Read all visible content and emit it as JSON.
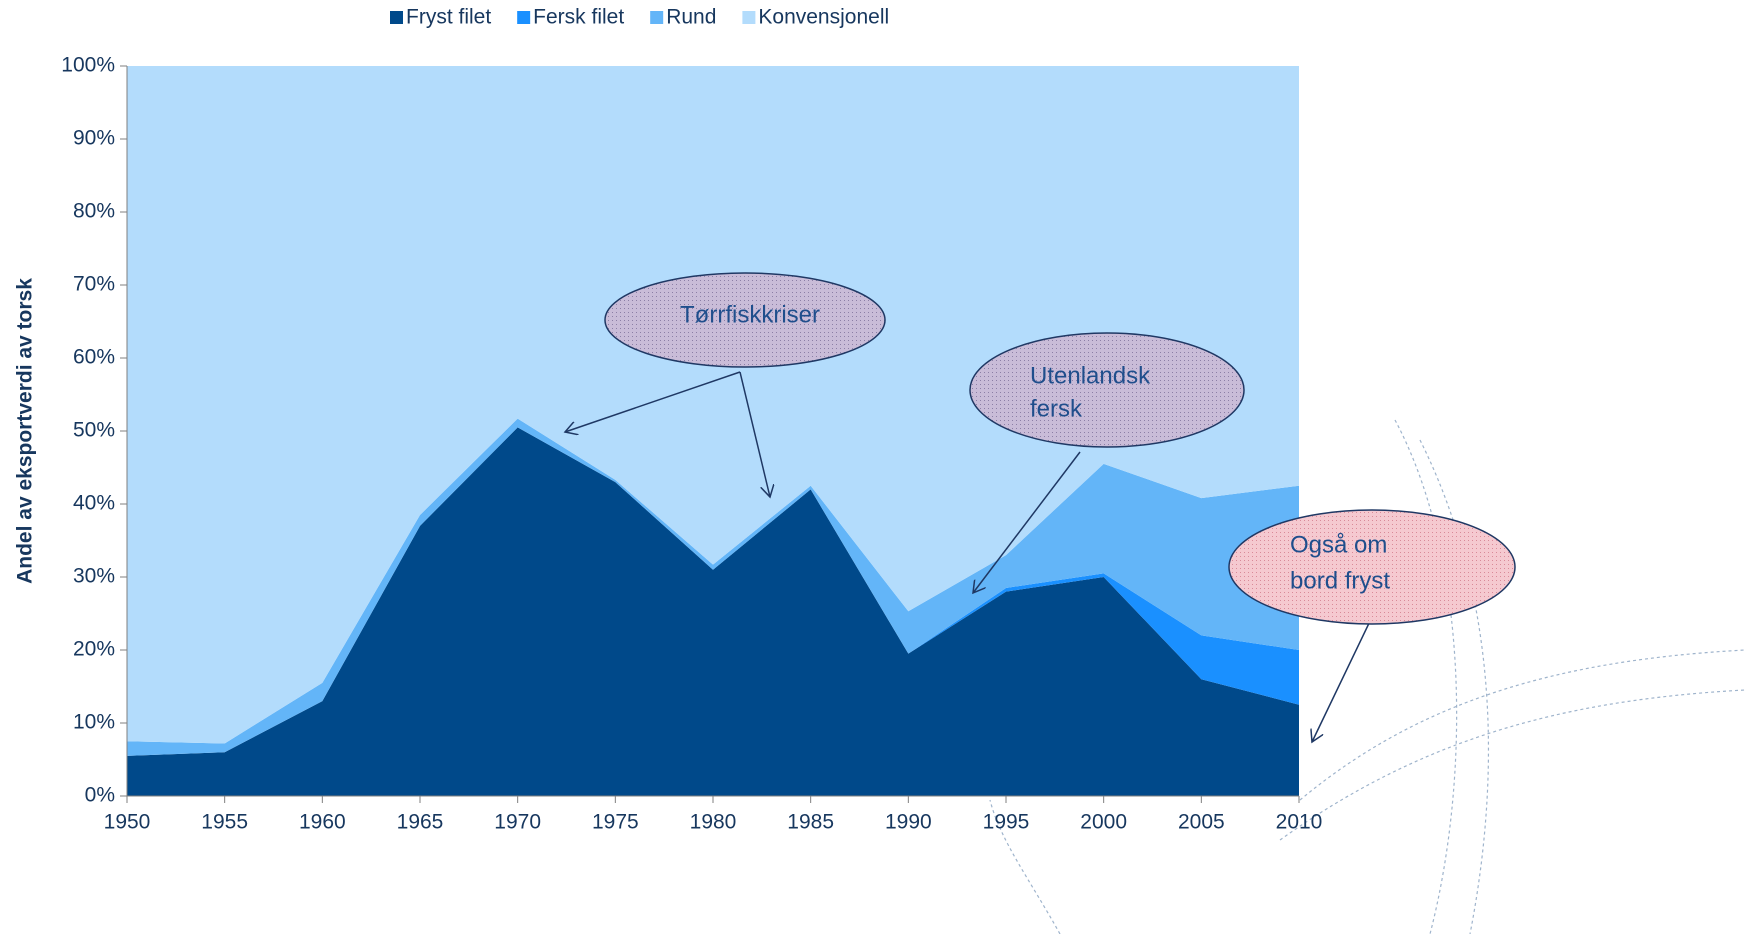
{
  "chart_data": {
    "type": "stacked_area",
    "y_axis_label": "Andel av eksportverdi av torsk",
    "x": [
      1950,
      1955,
      1960,
      1965,
      1970,
      1975,
      1980,
      1985,
      1990,
      1995,
      2000,
      2005,
      2010
    ],
    "series": [
      {
        "name": "Fryst filet",
        "color": "#00498a",
        "values": [
          5.5,
          6,
          13,
          37,
          50.5,
          43,
          31,
          42,
          19.5,
          28,
          30,
          16,
          12.5
        ]
      },
      {
        "name": "Fersk filet",
        "color": "#1a90ff",
        "values": [
          0,
          0,
          0,
          0,
          0,
          0,
          0,
          0,
          0,
          0.5,
          0.5,
          6,
          7.5
        ]
      },
      {
        "name": "Rund",
        "color": "#63b5f8",
        "values": [
          2,
          1.2,
          2.5,
          1.5,
          1.2,
          0.3,
          0.7,
          0.5,
          5.8,
          4.5,
          15,
          18.8,
          22.5
        ]
      },
      {
        "name": "Konvensjonell",
        "color": "#b3dcfc",
        "values": [
          92.5,
          92.8,
          84.5,
          61.5,
          48.3,
          56.7,
          68.3,
          57.5,
          74.7,
          67,
          54.5,
          59.2,
          57.5
        ]
      }
    ],
    "xlim": [
      1950,
      2010
    ],
    "xticks": [
      1950,
      1955,
      1960,
      1965,
      1970,
      1975,
      1980,
      1985,
      1990,
      1995,
      2000,
      2005,
      2010
    ],
    "ylim": [
      0,
      100
    ],
    "yticks": [
      {
        "value": 0,
        "label": "0%"
      },
      {
        "value": 10,
        "label": "10%"
      },
      {
        "value": 20,
        "label": "20%"
      },
      {
        "value": 30,
        "label": "30%"
      },
      {
        "value": 40,
        "label": "40%"
      },
      {
        "value": 50,
        "label": "50%"
      },
      {
        "value": 60,
        "label": "60%"
      },
      {
        "value": 70,
        "label": "70%"
      },
      {
        "value": 80,
        "label": "80%"
      },
      {
        "value": 90,
        "label": "90%"
      },
      {
        "value": 100,
        "label": "100%"
      }
    ],
    "legend": "top",
    "annotations": [
      {
        "lines": [
          "Tørrfiskkriser"
        ]
      },
      {
        "lines": [
          "Utenlandsk",
          "fersk"
        ]
      },
      {
        "lines": [
          "Også om",
          "bord fryst"
        ]
      }
    ]
  }
}
